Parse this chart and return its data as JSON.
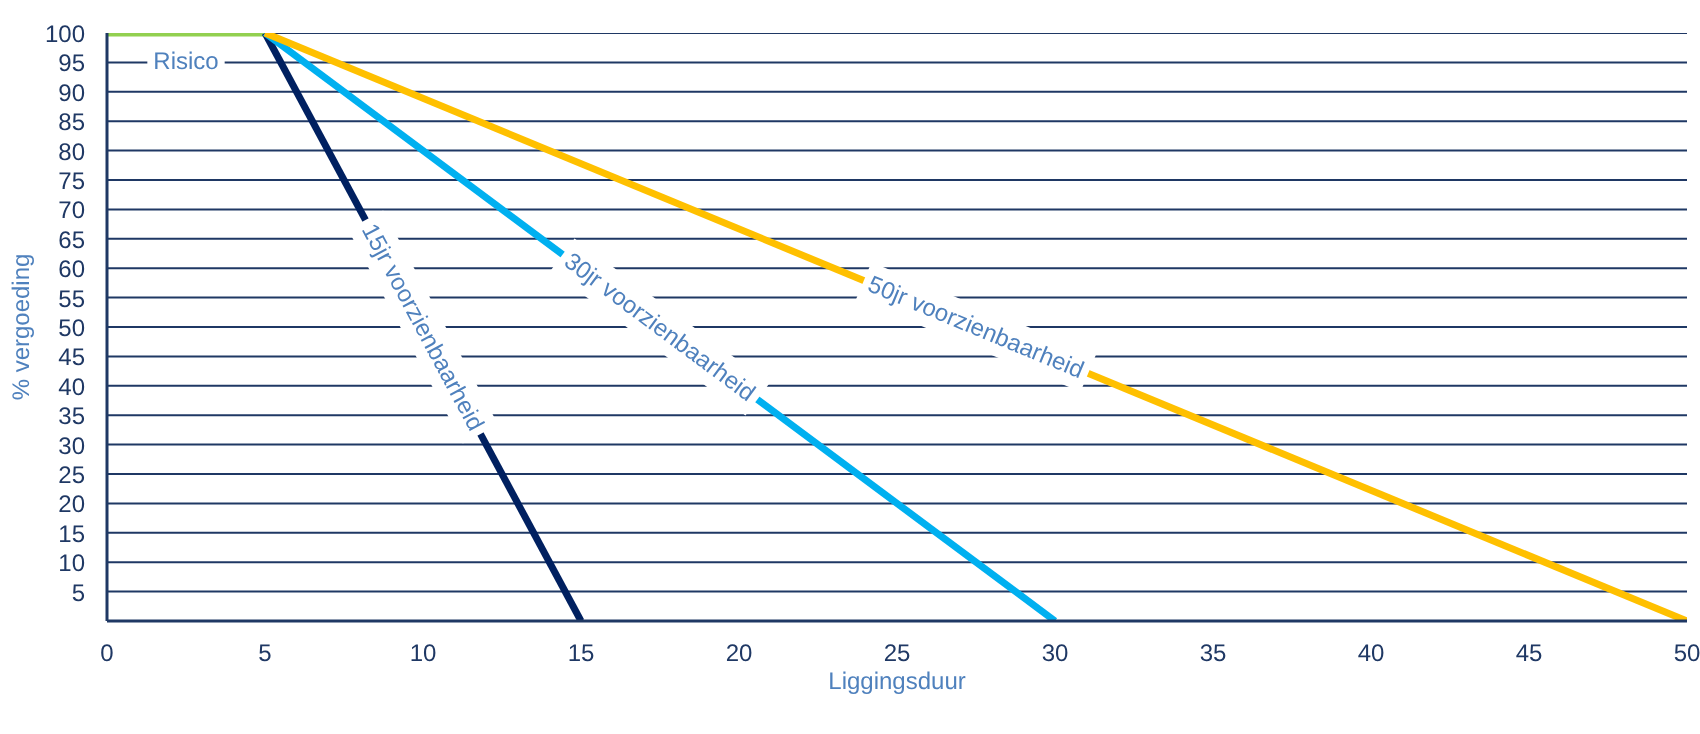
{
  "chart_data": {
    "type": "line",
    "xlabel": "Liggingsduur",
    "ylabel": "% vergoeding",
    "xlim": [
      0,
      50
    ],
    "ylim": [
      0,
      100
    ],
    "xticks": [
      0,
      5,
      10,
      15,
      20,
      25,
      30,
      35,
      40,
      45,
      50
    ],
    "yticks": [
      {
        "value": 0,
        "label": null
      },
      5,
      10,
      15,
      20,
      25,
      30,
      35,
      40,
      45,
      50,
      55,
      60,
      65,
      70,
      75,
      80,
      85,
      90,
      95,
      100
    ],
    "grid": "y",
    "marker": "none",
    "line_style": "solid",
    "legend": false,
    "series": [
      {
        "name": "Risico",
        "color": "#92d050",
        "x": [
          0,
          5
        ],
        "values": [
          100,
          100
        ]
      },
      {
        "name": "15jr voorzienbaarheid",
        "color": "#002060",
        "x": [
          5,
          15
        ],
        "values": [
          100,
          0
        ]
      },
      {
        "name": "30jr voorzienbaarheid",
        "color": "#00b0f0",
        "x": [
          5,
          30
        ],
        "values": [
          100,
          0
        ]
      },
      {
        "name": "50jr voorzienbaarheid",
        "color": "#ffc000",
        "x": [
          5,
          50
        ],
        "values": [
          100,
          0
        ]
      }
    ]
  }
}
